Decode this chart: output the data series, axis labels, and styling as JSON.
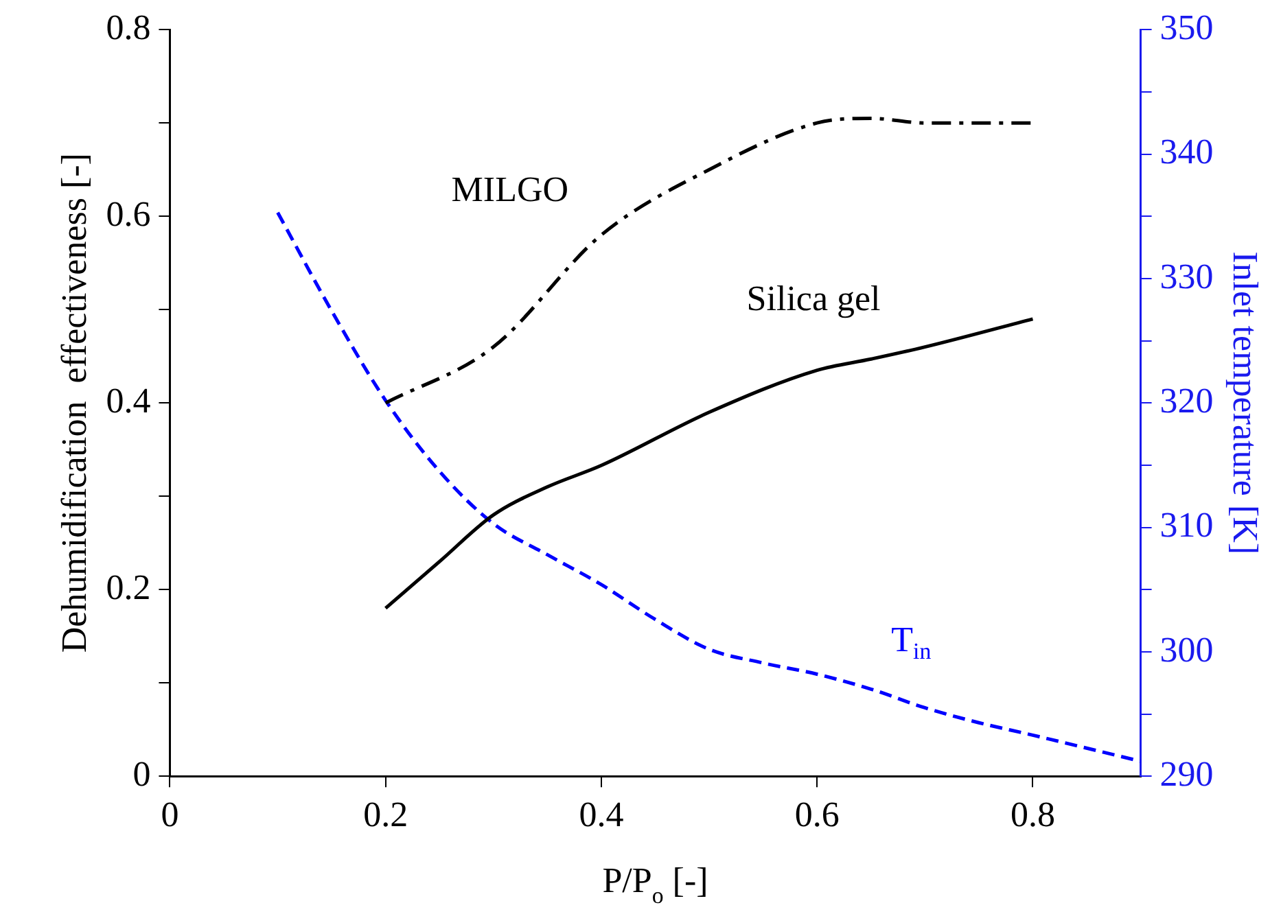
{
  "chart_data": {
    "type": "line",
    "xlabel": "P/P$_{o}$ [-]",
    "ylabel": "Dehumidification  effectiveness [-]",
    "y2label": "Inlet temperature [K]",
    "xlim": [
      0,
      0.9
    ],
    "xticks": [
      0,
      0.2,
      0.4,
      0.6,
      0.8
    ],
    "ylim": [
      0,
      0.8
    ],
    "yticks": [
      0,
      {
        "value": 0.1,
        "label": null
      },
      0.2,
      {
        "value": 0.3,
        "label": null
      },
      0.4,
      {
        "value": 0.5,
        "label": null
      },
      0.6,
      {
        "value": 0.7,
        "label": null
      },
      0.8
    ],
    "y2lim": [
      290,
      350
    ],
    "y2ticks": [
      290,
      {
        "value": 295,
        "label": null
      },
      300,
      {
        "value": 305,
        "label": null
      },
      310,
      {
        "value": 315,
        "label": null
      },
      320,
      {
        "value": 325,
        "label": null
      },
      330,
      {
        "value": 335,
        "label": null
      },
      340,
      {
        "value": 345,
        "label": null
      },
      350
    ],
    "grid": false,
    "legend": false,
    "marker": "none",
    "series": [
      {
        "name": "MILGO",
        "color": "#000000",
        "line_style": "dashed",
        "x": [
          0.2,
          0.3,
          0.4,
          0.5,
          0.6,
          0.65,
          0.7,
          0.8
        ],
        "values": [
          0.4,
          0.46,
          0.58,
          0.65,
          0.7,
          0.705,
          0.7,
          0.7
        ]
      },
      {
        "name": "Silica gel",
        "color": "#000000",
        "line_style": "solid",
        "x": [
          0.2,
          0.25,
          0.3,
          0.35,
          0.4,
          0.5,
          0.6,
          0.65,
          0.7,
          0.8
        ],
        "values": [
          0.18,
          0.23,
          0.28,
          0.31,
          0.333,
          0.39,
          0.435,
          0.447,
          0.46,
          0.49
        ]
      },
      {
        "name": "T$_{in}$",
        "color": "#0000ff",
        "line_style": "dashed",
        "axis": "y2",
        "x": [
          0.1,
          0.15,
          0.2,
          0.25,
          0.3,
          0.35,
          0.4,
          0.45,
          0.5,
          0.55,
          0.6,
          0.65,
          0.7,
          0.75,
          0.8,
          0.9
        ],
        "values": [
          335.3,
          327.4,
          320.2,
          314.5,
          310.3,
          307.8,
          305.4,
          302.6,
          300.2,
          299.1,
          298.2,
          297,
          295.5,
          294.3,
          293.3,
          291.2
        ]
      }
    ]
  }
}
